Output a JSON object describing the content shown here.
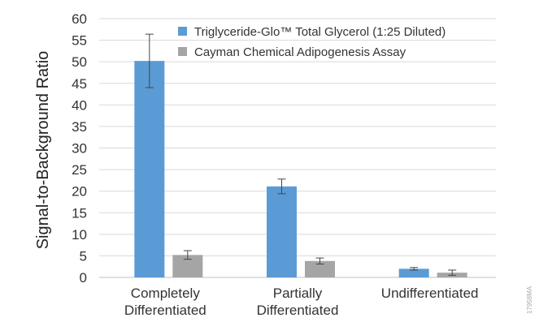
{
  "chart_data": {
    "type": "bar",
    "ylabel": "Signal-to-Background Ratio",
    "xlabel": "",
    "ylim": [
      0,
      60
    ],
    "yticks": [
      0,
      5,
      10,
      15,
      20,
      25,
      30,
      35,
      40,
      45,
      50,
      55,
      60
    ],
    "grid": true,
    "legend_position": "top-right",
    "categories": [
      [
        "Completely",
        "Differentiated"
      ],
      [
        "Partially",
        "Differentiated"
      ],
      [
        "Undifferentiated"
      ]
    ],
    "series": [
      {
        "name": "Triglyceride-Glo™ Total Glycerol (1:25 Diluted)",
        "color": "#5b9bd5",
        "values": [
          50.2,
          21.1,
          2.0
        ],
        "error": [
          6.2,
          1.7,
          0.3
        ]
      },
      {
        "name": "Cayman Chemical Adipogenesis Assay",
        "color": "#a5a5a5",
        "values": [
          5.2,
          3.8,
          1.1
        ],
        "error": [
          1.0,
          0.7,
          0.6
        ]
      }
    ]
  },
  "watermark": "17958MA"
}
